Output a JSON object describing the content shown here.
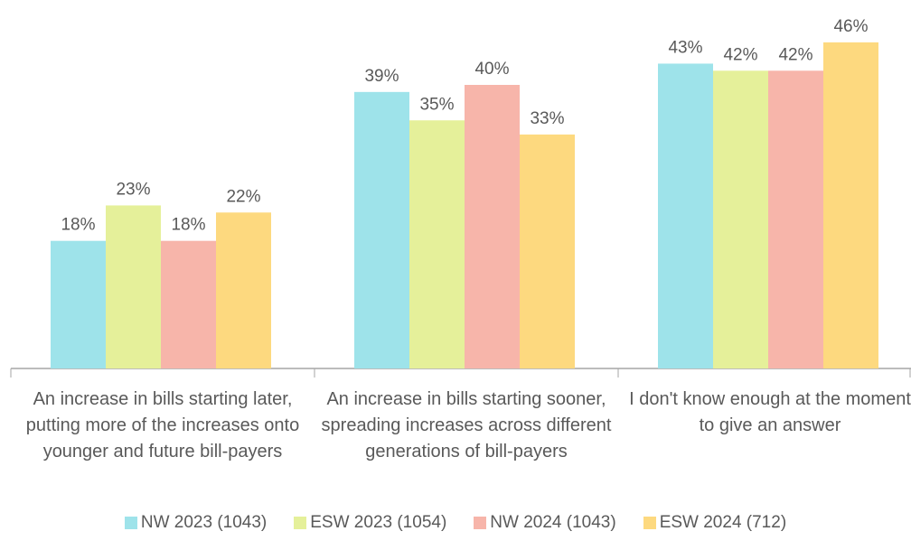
{
  "chart_data": {
    "type": "bar",
    "categories": [
      "An increase in bills starting later, putting more of the increases onto younger and future bill-payers",
      "An increase in bills starting sooner, spreading increases across different generations of bill-payers",
      "I don't know enough at the moment to give an answer"
    ],
    "series": [
      {
        "name": "NW 2023 (1043)",
        "color": "#9ee3ea",
        "values": [
          18,
          39,
          43
        ],
        "value_labels": [
          "18%",
          "39%",
          "43%"
        ]
      },
      {
        "name": "ESW 2023 (1054)",
        "color": "#e5f09a",
        "values": [
          23,
          35,
          42
        ],
        "value_labels": [
          "23%",
          "35%",
          "42%"
        ]
      },
      {
        "name": "NW 2024 (1043)",
        "color": "#f7b5aa",
        "values": [
          18,
          40,
          42
        ],
        "value_labels": [
          "18%",
          "40%",
          "42%"
        ]
      },
      {
        "name": "ESW 2024 (712)",
        "color": "#fdd97f",
        "values": [
          22,
          33,
          46
        ],
        "value_labels": [
          "22%",
          "33%",
          "46%"
        ]
      }
    ],
    "legend": "bottom"
  }
}
